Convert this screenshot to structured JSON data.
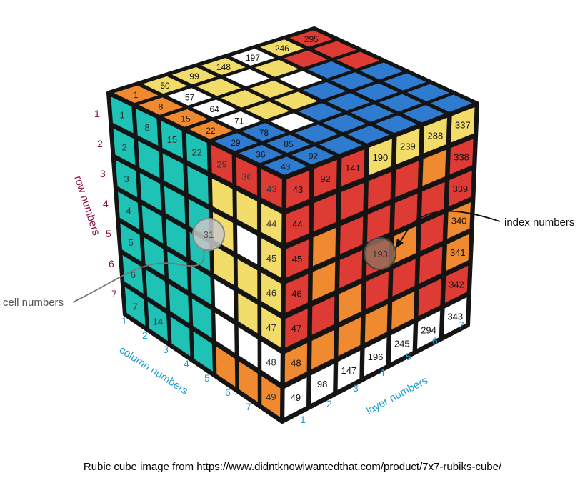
{
  "colors": {
    "teal": "#1fc3b6",
    "yellow": "#f2dd6b",
    "orange": "#f08a30",
    "red": "#de3b34",
    "white": "#ffffff",
    "blue": "#2f7bd0",
    "frame": "#141414",
    "row_label": "#8a1446",
    "axis_label": "#1f9ecf",
    "callout": "#555555"
  },
  "front_face": {
    "description_colors": [
      [
        "red",
        "red",
        "red",
        "yellow",
        "yellow",
        "yellow",
        "yellow"
      ],
      [
        "red",
        "red",
        "red",
        "red",
        "red",
        "orange",
        "red"
      ],
      [
        "red",
        "orange",
        "red",
        "red",
        "red",
        "red",
        "red"
      ],
      [
        "red",
        "orange",
        "red",
        "red",
        "orange",
        "red",
        "orange"
      ],
      [
        "red",
        "red",
        "orange",
        "red",
        "red",
        "red",
        "orange"
      ],
      [
        "orange",
        "orange",
        "orange",
        "orange",
        "orange",
        "red",
        "red"
      ],
      [
        "white",
        "white",
        "white",
        "white",
        "white",
        "white",
        "white"
      ]
    ],
    "left_column_numbers": [
      "43",
      "44",
      "45",
      "46",
      "47",
      "48",
      "49"
    ],
    "top_row_numbers": [
      "43",
      "92",
      "141",
      "190",
      "239",
      "288",
      "337"
    ],
    "right_column_numbers": [
      "337",
      "338",
      "339",
      "340",
      "341",
      "342",
      "343"
    ],
    "bottom_row_numbers": [
      "49",
      "98",
      "147",
      "196",
      "245",
      "294",
      "343"
    ]
  },
  "left_face": {
    "colors": [
      [
        "teal",
        "teal",
        "teal",
        "teal",
        "red",
        "red",
        "red"
      ],
      [
        "teal",
        "teal",
        "teal",
        "teal",
        "yellow",
        "yellow",
        "yellow"
      ],
      [
        "teal",
        "teal",
        "teal",
        "teal",
        "yellow",
        "white",
        "yellow"
      ],
      [
        "teal",
        "teal",
        "teal",
        "teal",
        "yellow",
        "yellow",
        "yellow"
      ],
      [
        "teal",
        "teal",
        "teal",
        "teal",
        "white",
        "yellow",
        "yellow"
      ],
      [
        "teal",
        "teal",
        "teal",
        "teal",
        "white",
        "white",
        "white"
      ],
      [
        "teal",
        "teal",
        "teal",
        "teal",
        "orange",
        "orange",
        "orange"
      ]
    ],
    "first_column_numbers": [
      "1",
      "2",
      "3",
      "4",
      "5",
      "6",
      "7"
    ],
    "top_row_numbers": [
      "1",
      "8",
      "15",
      "22",
      "29",
      "36",
      "43"
    ],
    "right_column_numbers": [
      "43",
      "44",
      "45",
      "46",
      "47",
      "48",
      "49"
    ],
    "extra_cells": [
      {
        "row": 7,
        "col": 2,
        "label": "14"
      }
    ]
  },
  "top_face": {
    "front_row_numbers": [
      "43",
      "92"
    ],
    "left_edge_numbers": [
      "1",
      "8",
      "15",
      "22",
      "29",
      "36",
      "43"
    ],
    "diag_numbers": [
      "1",
      "50",
      "99",
      "148",
      "197",
      "246",
      "295"
    ],
    "second_diag": [
      "8",
      "57"
    ],
    "third_diag": [
      "15",
      "64"
    ],
    "fourth_diag": [
      "22",
      "71"
    ],
    "fifth_diag": [
      "29",
      "78"
    ],
    "sixth_diag": [
      "36",
      "85"
    ]
  },
  "callouts": {
    "cell": {
      "label": "cell numbers",
      "bubble": "31"
    },
    "index": {
      "label": "index numbers",
      "bubble": "193"
    }
  },
  "axes": {
    "row_title": "row numbers",
    "column_title": "column numbers",
    "layer_title": "layer numbers",
    "row_ticks": [
      "1",
      "2",
      "3",
      "4",
      "5",
      "6",
      "7"
    ],
    "column_ticks": [
      "1",
      "2",
      "3",
      "4",
      "5",
      "6",
      "7"
    ],
    "layer_ticks": [
      "1",
      "2",
      "3",
      "4",
      "5",
      "6",
      "7"
    ]
  },
  "caption": "Rubic cube image from https://www.didntknowiwantedthat.com/product/7x7-rubiks-cube/"
}
